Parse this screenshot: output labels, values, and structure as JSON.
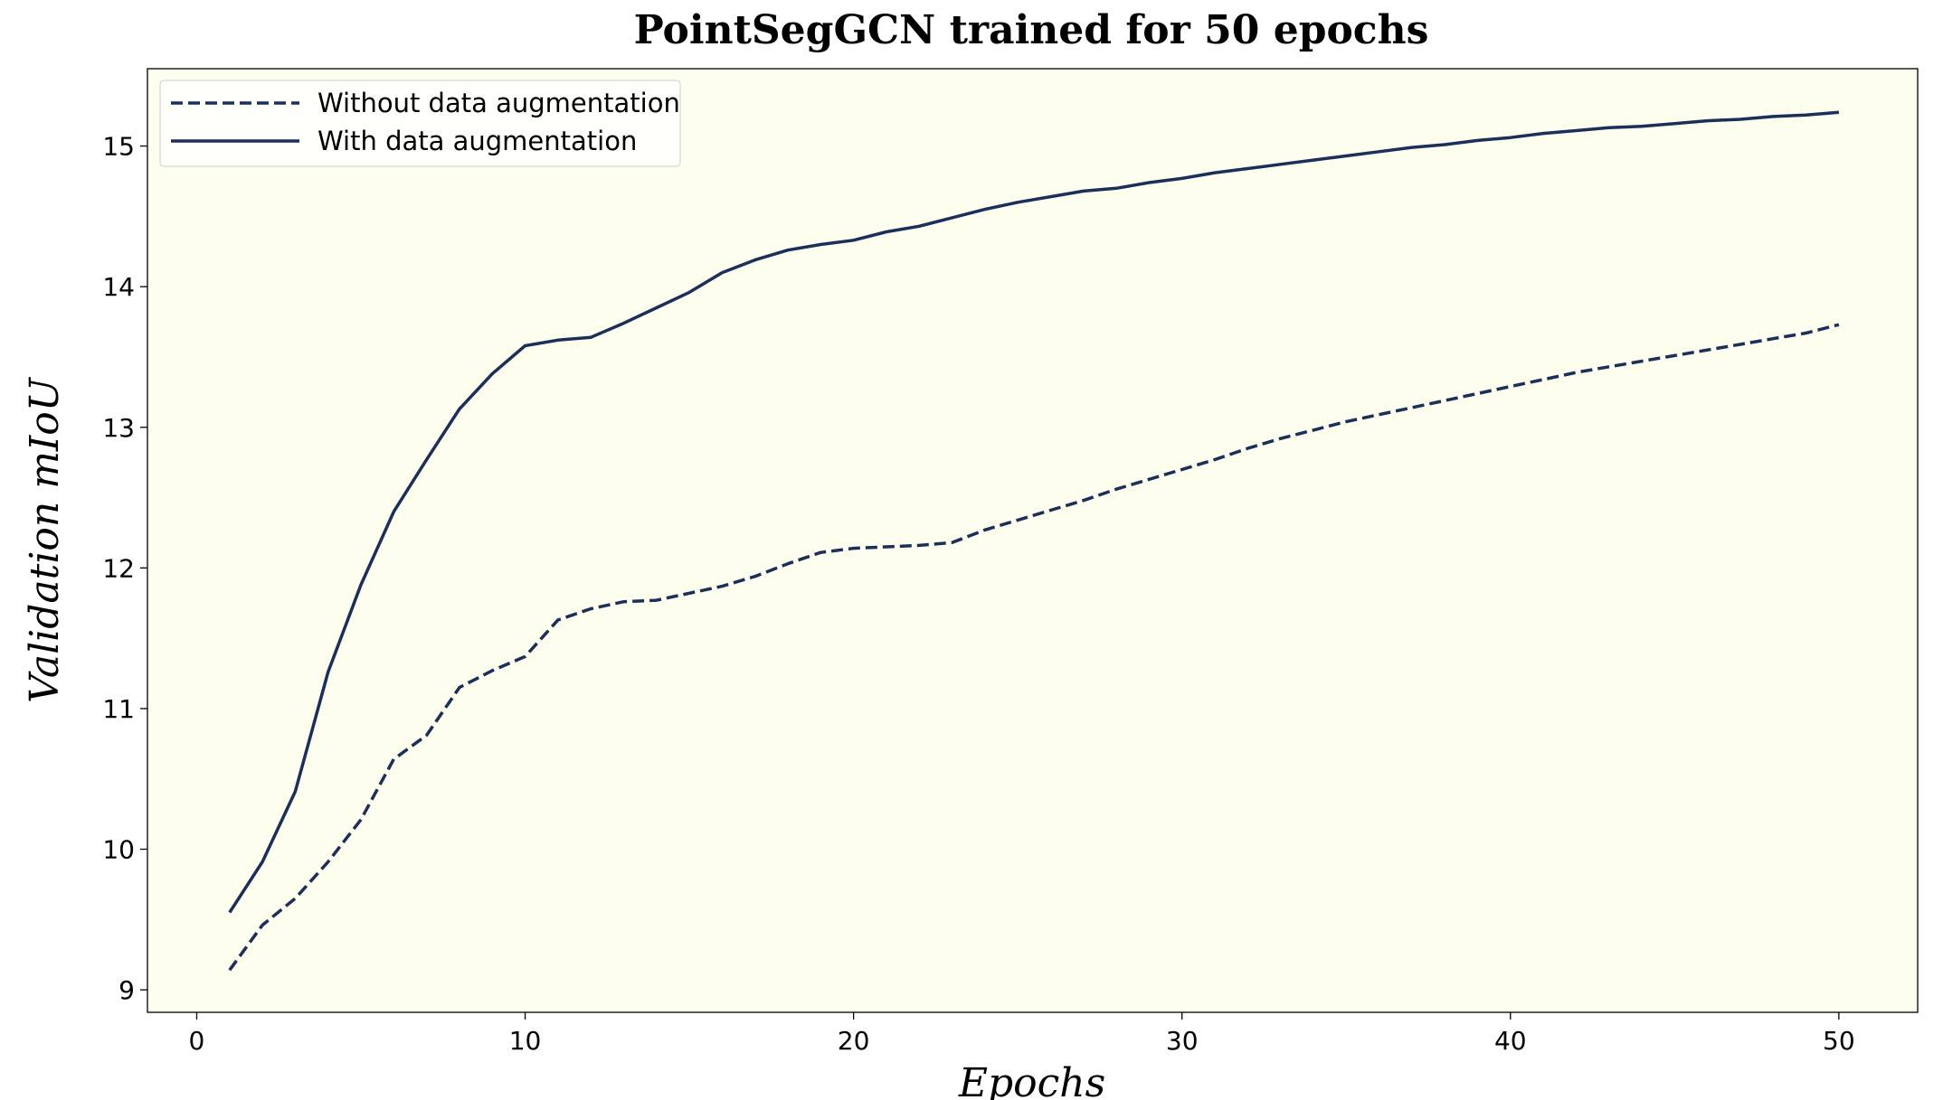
{
  "chart_data": {
    "type": "line",
    "title": "PointSegGCN trained for 50 epochs",
    "xlabel": "Epochs",
    "ylabel": "Validation mIoU",
    "xlim": [
      -1.5,
      52.4
    ],
    "ylim": [
      8.84,
      15.55
    ],
    "xticks": [
      0,
      10,
      20,
      30,
      40,
      50
    ],
    "yticks": [
      9,
      10,
      11,
      12,
      13,
      14,
      15
    ],
    "grid": false,
    "legend_position": "top-left",
    "plot_background": "#fefeee",
    "line_color": "#1b2f5b",
    "x": [
      1,
      2,
      3,
      4,
      5,
      6,
      7,
      8,
      9,
      10,
      11,
      12,
      13,
      14,
      15,
      16,
      17,
      18,
      19,
      20,
      21,
      22,
      23,
      24,
      25,
      26,
      27,
      28,
      29,
      30,
      31,
      32,
      33,
      34,
      35,
      36,
      37,
      38,
      39,
      40,
      41,
      42,
      43,
      44,
      45,
      46,
      47,
      48,
      49,
      50
    ],
    "series": [
      {
        "name": "Without data augmentation",
        "style": "dashed",
        "values": [
          9.14,
          9.46,
          9.65,
          9.91,
          10.21,
          10.64,
          10.81,
          11.15,
          11.27,
          11.37,
          11.63,
          11.71,
          11.76,
          11.77,
          11.82,
          11.87,
          11.94,
          12.03,
          12.11,
          12.14,
          12.15,
          12.16,
          12.18,
          12.27,
          12.34,
          12.41,
          12.48,
          12.56,
          12.63,
          12.7,
          12.77,
          12.85,
          12.92,
          12.98,
          13.04,
          13.09,
          13.14,
          13.19,
          13.24,
          13.29,
          13.34,
          13.39,
          13.43,
          13.47,
          13.51,
          13.55,
          13.59,
          13.63,
          13.67,
          13.73
        ]
      },
      {
        "name": "With data augmentation",
        "style": "solid",
        "values": [
          9.55,
          9.91,
          10.41,
          11.26,
          11.88,
          12.4,
          12.77,
          13.13,
          13.38,
          13.58,
          13.62,
          13.64,
          13.74,
          13.85,
          13.96,
          14.1,
          14.19,
          14.26,
          14.3,
          14.33,
          14.39,
          14.43,
          14.49,
          14.55,
          14.6,
          14.64,
          14.68,
          14.7,
          14.74,
          14.77,
          14.81,
          14.84,
          14.87,
          14.9,
          14.93,
          14.96,
          14.99,
          15.01,
          15.04,
          15.06,
          15.09,
          15.11,
          15.13,
          15.14,
          15.16,
          15.18,
          15.19,
          15.21,
          15.22,
          15.24
        ]
      }
    ]
  }
}
